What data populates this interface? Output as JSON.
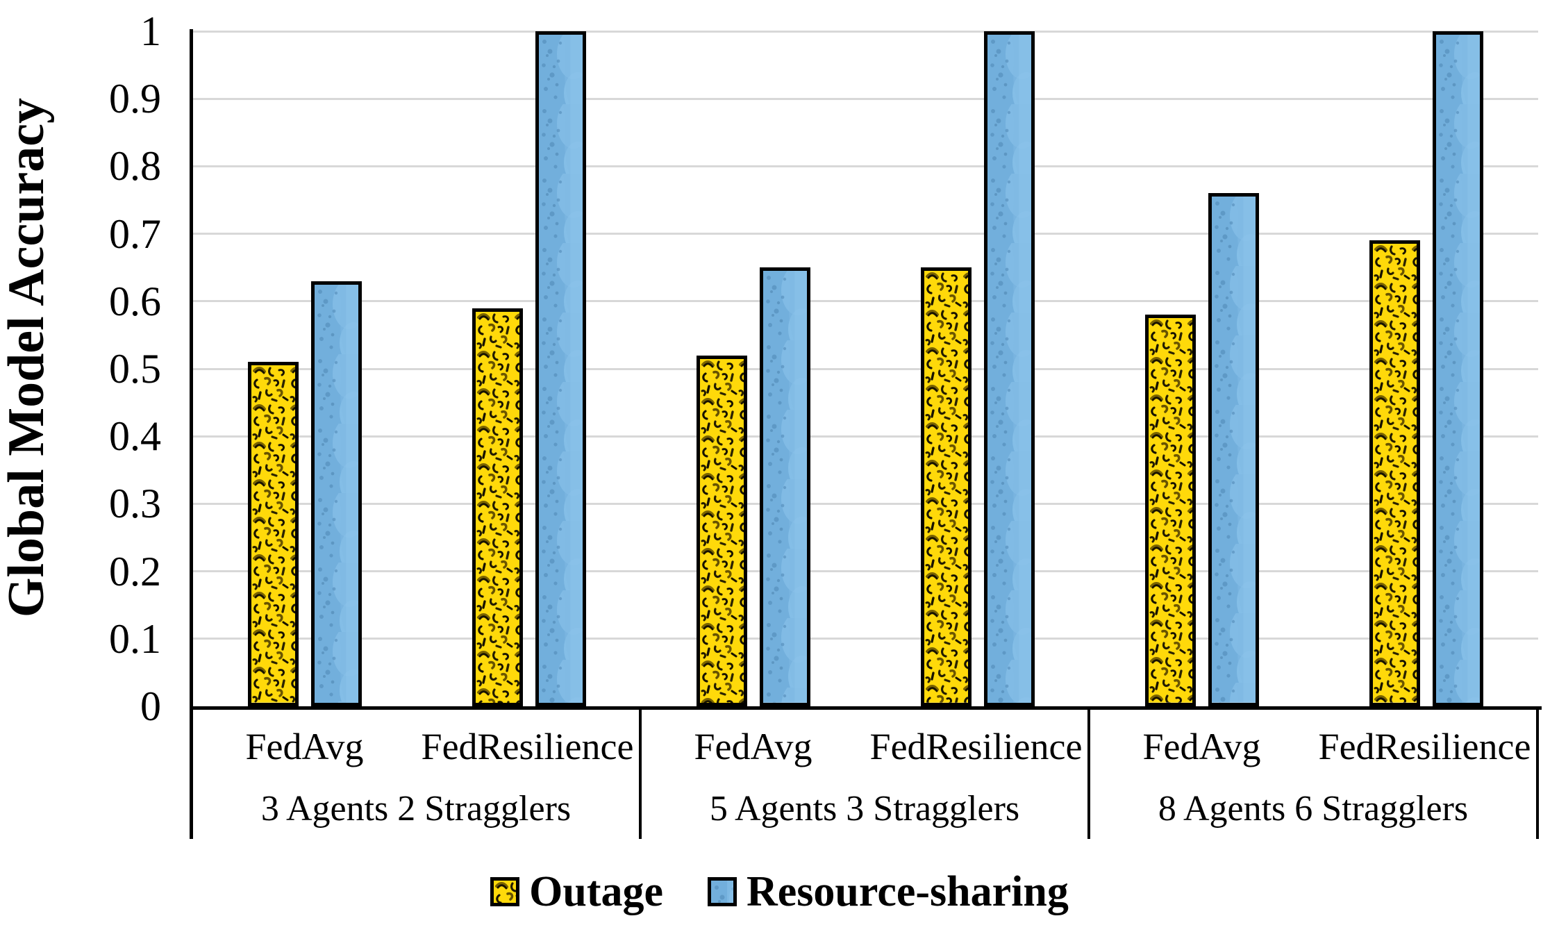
{
  "chart_data": {
    "type": "bar",
    "title": "",
    "ylabel": "Global Model Accuracy",
    "xlabel": "",
    "ylim": [
      0,
      1
    ],
    "ytick_labels": [
      "1",
      "0.9",
      "0.8",
      "0.7",
      "0.6",
      "0.5",
      "0.4",
      "0.3",
      "0.2",
      "0.1",
      "0"
    ],
    "grid": "horizontal",
    "legend_position": "bottom",
    "group_labels": [
      "3 Agents 2 Stragglers",
      "5 Agents 3 Stragglers",
      "8 Agents 6 Stragglers"
    ],
    "categories": [
      "FedAvg",
      "FedResilience",
      "FedAvg",
      "FedResilience",
      "FedAvg",
      "FedResilience"
    ],
    "series": [
      {
        "name": "Outage",
        "pattern": "scribble",
        "fill": "#FFD90A",
        "values": [
          0.51,
          0.59,
          0.52,
          0.65,
          0.58,
          0.69
        ]
      },
      {
        "name": "Resource-sharing",
        "pattern": "water",
        "fill": "#72AFDC",
        "values": [
          0.63,
          1.0,
          0.65,
          1.0,
          0.76,
          1.0
        ]
      }
    ],
    "colors": {
      "grid": "#D8D8D8",
      "axis": "#000000",
      "bar_border": "#000000"
    }
  }
}
